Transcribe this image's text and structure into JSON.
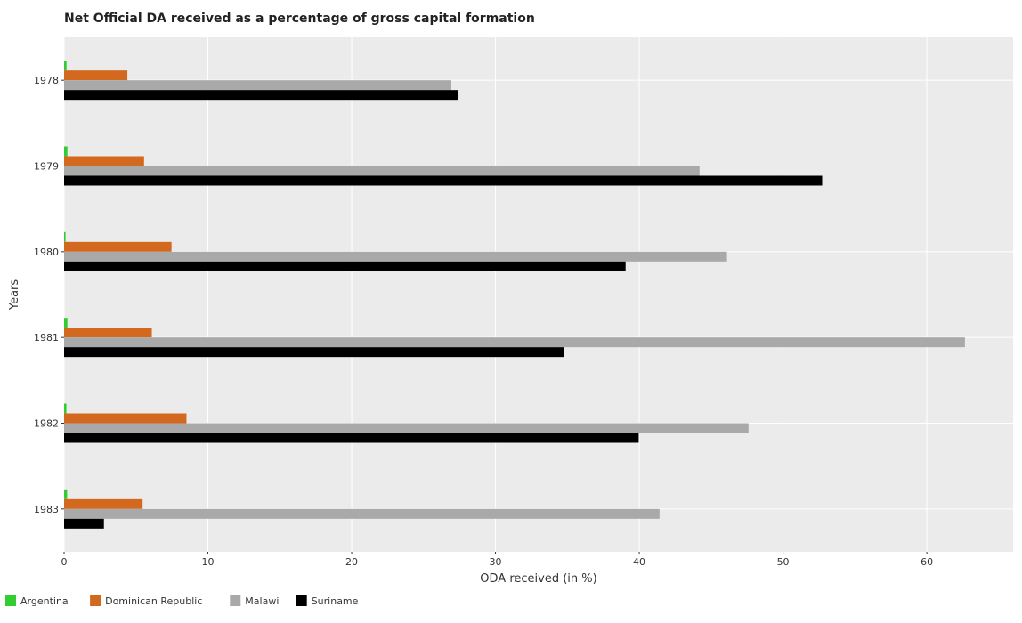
{
  "chart_data": {
    "type": "bar",
    "orientation": "horizontal",
    "title": "Net Official DA received as a percentage of gross capital formation",
    "xlabel": "ODA received (in %)",
    "ylabel": "Years",
    "xlim": [
      0,
      66
    ],
    "xticks": [
      0,
      10,
      20,
      30,
      40,
      50,
      60
    ],
    "grid": true,
    "legend_position": "bottom-left",
    "categories": [
      "1978",
      "1979",
      "1980",
      "1981",
      "1982",
      "1983"
    ],
    "series": [
      {
        "name": "Argentina",
        "color": "#33cc33",
        "values": [
          0.17,
          0.23,
          0.1,
          0.23,
          0.16,
          0.21
        ]
      },
      {
        "name": "Dominican Republic",
        "color": "#d2691e",
        "values": [
          4.4,
          5.56,
          7.47,
          6.1,
          8.51,
          5.46
        ]
      },
      {
        "name": "Malawi",
        "color": "#a9a9a9",
        "values": [
          26.93,
          44.19,
          46.1,
          62.65,
          47.6,
          41.41
        ]
      },
      {
        "name": "Suriname",
        "color": "#000000",
        "values": [
          27.37,
          52.72,
          39.05,
          34.78,
          39.96,
          2.77
        ]
      }
    ]
  }
}
